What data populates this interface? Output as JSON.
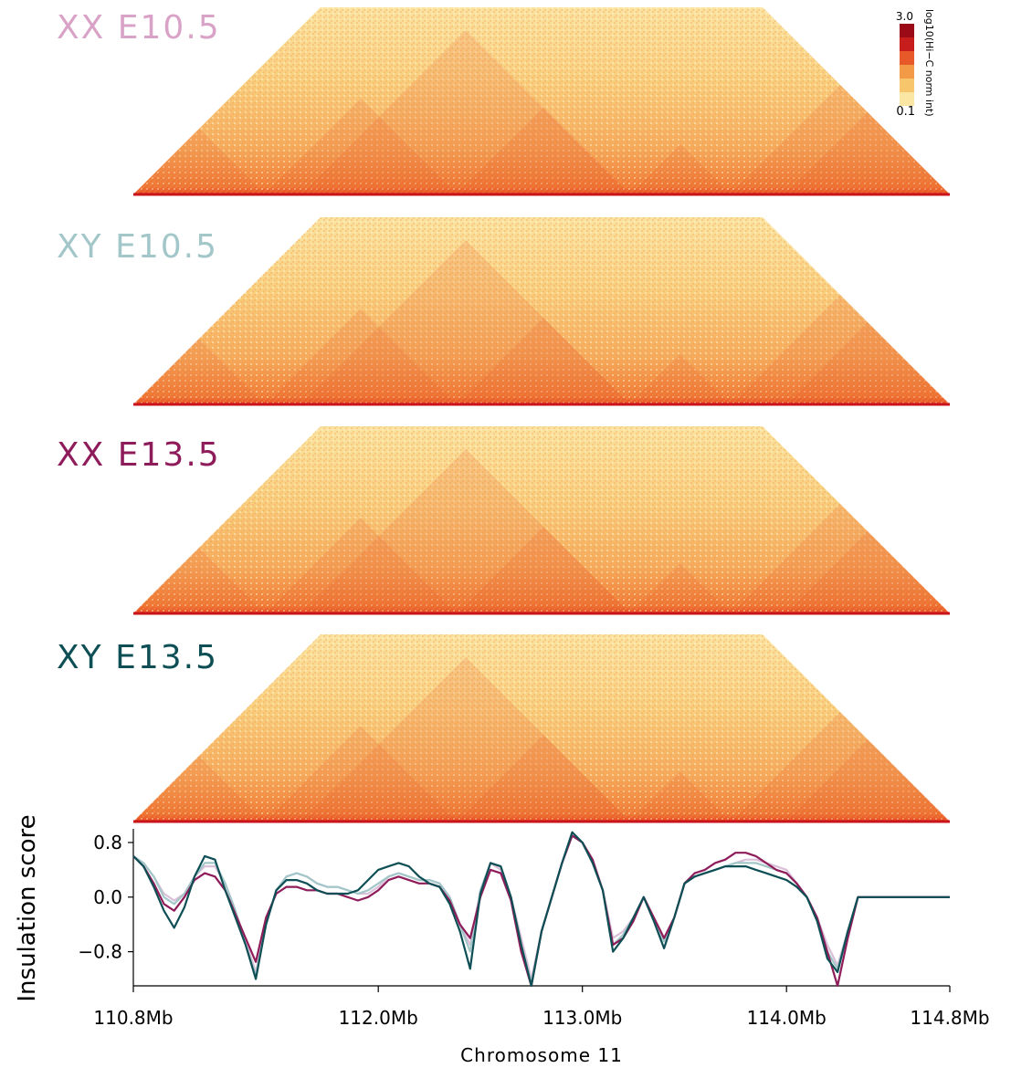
{
  "panels": [
    {
      "label": "XX E10.5",
      "color": "#d9a3c8"
    },
    {
      "label": "XY E10.5",
      "color": "#a3c7c9"
    },
    {
      "label": "XX E13.5",
      "color": "#8f1c5a"
    },
    {
      "label": "XY E13.5",
      "color": "#0e4f55"
    }
  ],
  "colorbar": {
    "max": "3.0",
    "min": "−0.1",
    "label": "log10(Hi−C norm int)",
    "colors": [
      "#fbe6a4",
      "#f7c56b",
      "#f29a45",
      "#e8592a",
      "#c81d1d",
      "#9b0b17"
    ]
  },
  "chart_data": {
    "type": "line",
    "ylabel": "Insulation score",
    "xlabel": "Chromosome 11",
    "xlim": [
      110.8,
      114.8
    ],
    "ylim": [
      -1.3,
      1.0
    ],
    "yticks": [
      "0.8",
      "0.0",
      "−0.8"
    ],
    "ytick_values": [
      0.8,
      0.0,
      -0.8
    ],
    "xticks": [
      "110.8Mb",
      "112.0Mb",
      "113.0Mb",
      "114.0Mb",
      "114.8Mb"
    ],
    "xtick_values": [
      110.8,
      112.0,
      113.0,
      114.0,
      114.8
    ],
    "x": [
      110.8,
      110.85,
      110.9,
      110.95,
      111.0,
      111.05,
      111.1,
      111.15,
      111.2,
      111.25,
      111.3,
      111.35,
      111.4,
      111.45,
      111.5,
      111.55,
      111.6,
      111.65,
      111.7,
      111.75,
      111.8,
      111.85,
      111.9,
      111.95,
      112.0,
      112.05,
      112.1,
      112.15,
      112.2,
      112.25,
      112.3,
      112.35,
      112.4,
      112.45,
      112.5,
      112.55,
      112.6,
      112.65,
      112.7,
      112.75,
      112.8,
      112.85,
      112.9,
      112.95,
      113.0,
      113.05,
      113.1,
      113.15,
      113.2,
      113.25,
      113.3,
      113.35,
      113.4,
      113.45,
      113.5,
      113.55,
      113.6,
      113.65,
      113.7,
      113.75,
      113.8,
      113.85,
      113.9,
      113.95,
      114.0,
      114.05,
      114.1,
      114.15,
      114.2,
      114.25,
      114.3,
      114.35,
      114.4,
      114.45,
      114.5,
      114.55,
      114.6,
      114.65,
      114.7,
      114.75,
      114.8
    ],
    "series": [
      {
        "color": "#d9c0d8",
        "values": [
          0.6,
          0.5,
          0.3,
          0.05,
          -0.05,
          0.05,
          0.3,
          0.45,
          0.45,
          0.2,
          -0.2,
          -0.65,
          -1.1,
          -0.4,
          0.1,
          0.3,
          0.35,
          0.3,
          0.2,
          0.15,
          0.15,
          0.1,
          0.05,
          0.05,
          0.15,
          0.3,
          0.35,
          0.3,
          0.25,
          0.25,
          0.2,
          0.0,
          -0.4,
          -0.7,
          0.1,
          0.5,
          0.4,
          0.0,
          -0.6,
          -1.2,
          -0.5,
          0.0,
          0.5,
          0.9,
          0.8,
          0.5,
          0.1,
          -0.6,
          -0.5,
          -0.3,
          0.0,
          -0.3,
          -0.6,
          -0.3,
          0.2,
          0.3,
          0.35,
          0.4,
          0.45,
          0.5,
          0.55,
          0.55,
          0.5,
          0.45,
          0.4,
          0.2,
          0.0,
          -0.3,
          -0.7,
          -1.0,
          -0.5,
          0.0,
          0.0,
          0.0,
          0.0,
          0.0,
          0.0,
          0.0,
          0.0,
          0.0,
          0.0
        ]
      },
      {
        "color": "#a3c7c9",
        "values": [
          0.6,
          0.5,
          0.3,
          0.0,
          -0.1,
          0.05,
          0.3,
          0.5,
          0.5,
          0.2,
          -0.2,
          -0.7,
          -1.15,
          -0.4,
          0.1,
          0.3,
          0.35,
          0.3,
          0.2,
          0.15,
          0.15,
          0.1,
          0.05,
          0.1,
          0.2,
          0.3,
          0.35,
          0.3,
          0.25,
          0.25,
          0.2,
          0.0,
          -0.4,
          -0.8,
          0.1,
          0.5,
          0.45,
          0.0,
          -0.7,
          -1.25,
          -0.5,
          0.0,
          0.5,
          0.9,
          0.8,
          0.5,
          0.1,
          -0.7,
          -0.55,
          -0.3,
          0.0,
          -0.35,
          -0.65,
          -0.3,
          0.2,
          0.3,
          0.35,
          0.4,
          0.45,
          0.5,
          0.5,
          0.5,
          0.45,
          0.4,
          0.35,
          0.2,
          0.0,
          -0.35,
          -0.8,
          -1.05,
          -0.5,
          0.0,
          0.0,
          0.0,
          0.0,
          0.0,
          0.0,
          0.0,
          0.0,
          0.0,
          0.0
        ]
      },
      {
        "color": "#8f1c5a",
        "values": [
          0.6,
          0.45,
          0.2,
          -0.1,
          -0.2,
          0.0,
          0.25,
          0.35,
          0.3,
          0.1,
          -0.25,
          -0.6,
          -0.95,
          -0.3,
          0.05,
          0.15,
          0.15,
          0.1,
          0.1,
          0.05,
          0.05,
          0.0,
          -0.05,
          0.0,
          0.1,
          0.25,
          0.3,
          0.25,
          0.2,
          0.2,
          0.15,
          -0.05,
          -0.4,
          -0.6,
          0.0,
          0.4,
          0.35,
          -0.05,
          -0.8,
          -1.3,
          -0.5,
          0.0,
          0.5,
          0.9,
          0.8,
          0.55,
          0.1,
          -0.7,
          -0.6,
          -0.35,
          0.0,
          -0.3,
          -0.6,
          -0.3,
          0.2,
          0.35,
          0.4,
          0.5,
          0.55,
          0.65,
          0.65,
          0.6,
          0.5,
          0.4,
          0.35,
          0.2,
          0.0,
          -0.3,
          -0.8,
          -1.3,
          -0.6,
          0.0,
          0.0,
          0.0,
          0.0,
          0.0,
          0.0,
          0.0,
          0.0,
          0.0,
          0.0
        ]
      },
      {
        "color": "#0e4f55",
        "values": [
          0.6,
          0.45,
          0.15,
          -0.2,
          -0.45,
          -0.15,
          0.3,
          0.6,
          0.55,
          0.1,
          -0.3,
          -0.7,
          -1.2,
          -0.4,
          0.1,
          0.25,
          0.25,
          0.2,
          0.1,
          0.05,
          0.05,
          0.05,
          0.1,
          0.25,
          0.4,
          0.45,
          0.5,
          0.45,
          0.3,
          0.2,
          0.15,
          -0.1,
          -0.5,
          -1.05,
          0.05,
          0.5,
          0.45,
          0.0,
          -0.7,
          -1.3,
          -0.5,
          0.0,
          0.5,
          0.95,
          0.8,
          0.5,
          0.1,
          -0.8,
          -0.6,
          -0.3,
          0.0,
          -0.35,
          -0.75,
          -0.3,
          0.2,
          0.3,
          0.35,
          0.4,
          0.45,
          0.45,
          0.45,
          0.4,
          0.35,
          0.3,
          0.25,
          0.15,
          0.0,
          -0.35,
          -0.9,
          -1.1,
          -0.5,
          0.0,
          0.0,
          0.0,
          0.0,
          0.0,
          0.0,
          0.0,
          0.0,
          0.0,
          0.0
        ]
      }
    ]
  }
}
